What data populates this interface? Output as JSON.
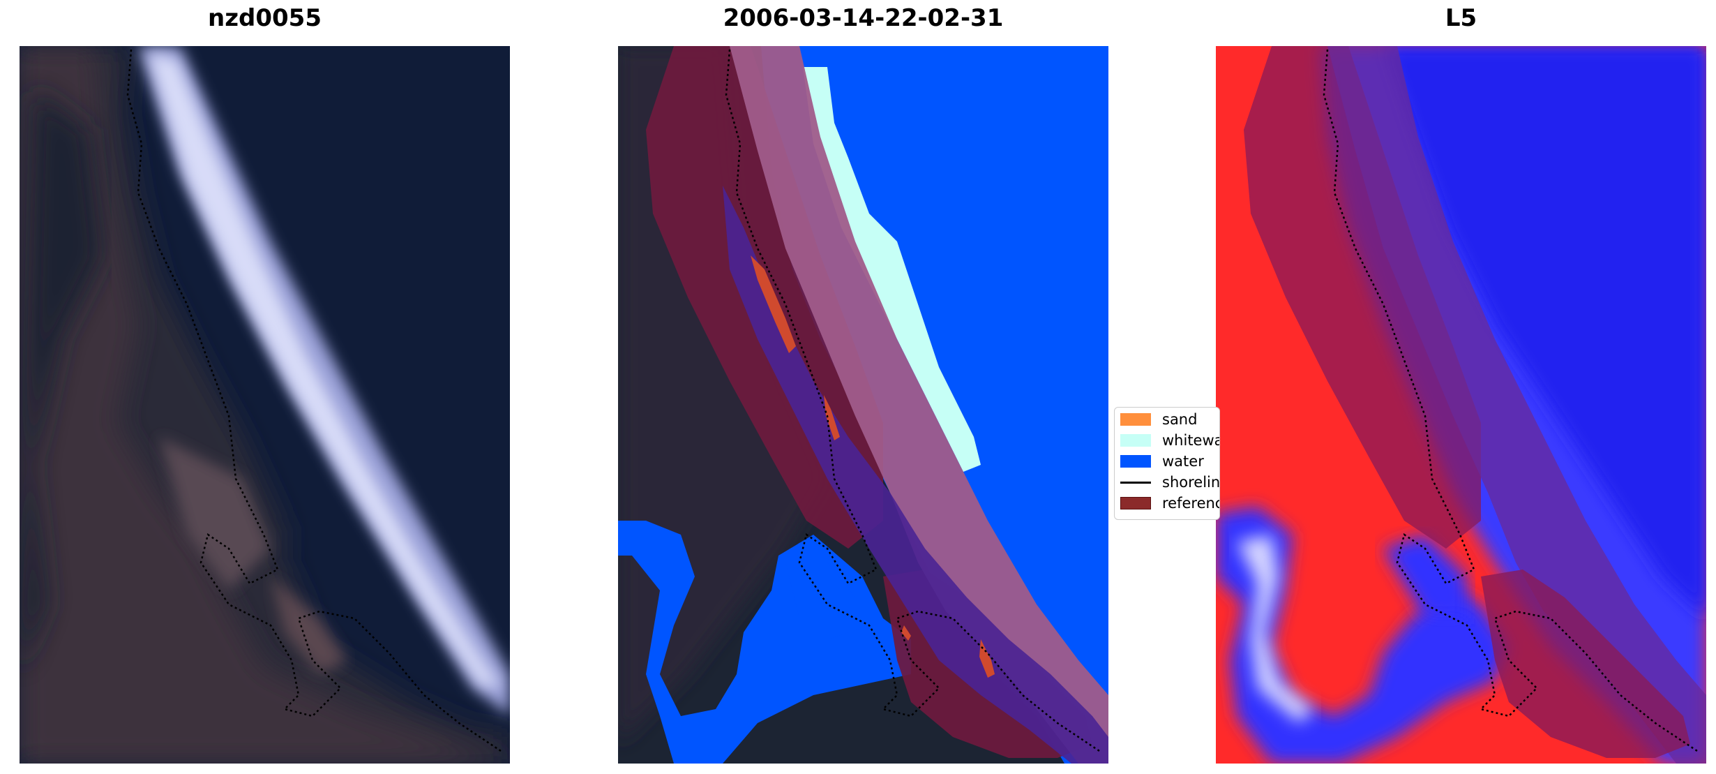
{
  "panels": [
    {
      "title": "nzd0055"
    },
    {
      "title": "2006-03-14-22-02-31"
    },
    {
      "title": "L5"
    }
  ],
  "legend": {
    "placement": "center-left of third panel",
    "items": [
      {
        "label": "sand",
        "color": "#ff8f3c",
        "kind": "patch"
      },
      {
        "label": "whitewater",
        "color": "#c6fff6",
        "kind": "patch"
      },
      {
        "label": "water",
        "color": "#0055ff",
        "kind": "patch"
      },
      {
        "label": "shoreline",
        "color": "#000000",
        "kind": "line"
      },
      {
        "label": "reference",
        "color": "#8b2a2a",
        "kind": "patch"
      }
    ]
  },
  "colors": {
    "land_dark": "#1c2433",
    "land_brown": "#4a3c44",
    "water_dark": "#101c38",
    "whitewater_rgb": "#c8ccf2",
    "class_water": "#0055ff",
    "class_whitewater": "#c6fff6",
    "reference_buffer": "#7a1b4a",
    "index_red": "#ff2020",
    "index_blue": "#2a2aff"
  }
}
